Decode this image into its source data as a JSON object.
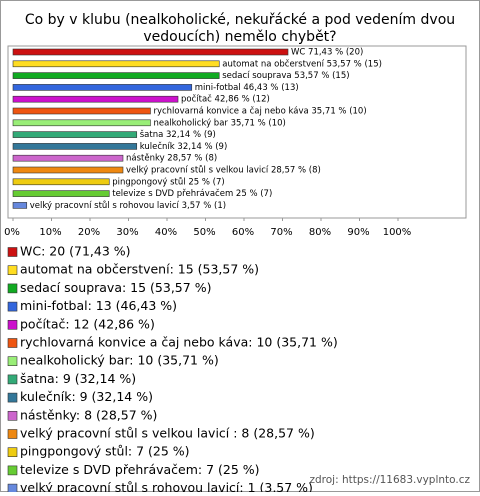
{
  "chart_data": {
    "type": "bar",
    "orientation": "horizontal",
    "title": [
      "Co by v klubu (nealkoholické, nekuřácké a pod vedením dvou",
      "vedoucích) nemělo chybět?"
    ],
    "categories": [
      "WC",
      "automat na občerstvení",
      "sedací souprava",
      "mini-fotbal",
      "počítač",
      "rychlovarná konvice a čaj nebo káva",
      "nealkoholický bar",
      "šatna",
      "kulečník",
      "nástěnky",
      "velký pracovní stůl s velkou lavicí",
      "pingpongový stůl",
      "televize s DVD přehrávačem",
      "velký pracovní stůl s rohovou lavicí"
    ],
    "values": [
      71.43,
      53.57,
      53.57,
      46.43,
      42.86,
      35.71,
      35.71,
      32.14,
      32.14,
      28.57,
      28.57,
      25,
      25,
      3.57
    ],
    "value_labels": [
      "WC 71,43 % (20)",
      "automat na občerstvení 53,57 % (15)",
      "sedací souprava 53,57 % (15)",
      "mini-fotbal 46,43 % (13)",
      "počítač 42,86 % (12)",
      "rychlovarná konvice a čaj nebo káva 35,71 % (10)",
      "nealkoholický bar 35,71 % (10)",
      "šatna 32,14 % (9)",
      "kulečník 32,14 % (9)",
      "nástěnky 28,57 % (8)",
      "velký pracovní stůl s velkou lavicí  28,57 % (8)",
      "pingpongový stůl 25 % (7)",
      "televize s DVD přehrávačem 25 % (7)",
      "velký pracovní stůl s rohovou lavicí 3,57 % (1)"
    ],
    "legend_labels": [
      "WC: 20 (71,43 %)",
      "automat na občerstvení: 15 (53,57 %)",
      "sedací souprava: 15 (53,57 %)",
      "mini-fotbal: 13 (46,43 %)",
      "počítač: 12 (42,86 %)",
      "rychlovarná konvice a čaj nebo káva: 10 (35,71 %)",
      "nealkoholický bar: 10 (35,71 %)",
      "šatna: 9 (32,14 %)",
      "kulečník: 9 (32,14 %)",
      "nástěnky: 8 (28,57 %)",
      "velký pracovní stůl s velkou lavicí : 8 (28,57 %)",
      "pingpongový stůl: 7 (25 %)",
      "televize s DVD přehrávačem: 7 (25 %)",
      "velký pracovní stůl s rohovou lavicí: 1 (3,57 %)"
    ],
    "colors": [
      "#cc1111",
      "#ffdd22",
      "#11aa22",
      "#3366dd",
      "#cc11cc",
      "#ee5511",
      "#99ee77",
      "#33aa77",
      "#337799",
      "#cc66cc",
      "#ee8811",
      "#eecc11",
      "#66cc33",
      "#6688dd"
    ],
    "xlim": [
      0,
      100
    ],
    "xticks": [
      {
        "value": 0,
        "label": "0%"
      },
      {
        "value": 10,
        "label": "10%"
      },
      {
        "value": 20,
        "label": "20%"
      },
      {
        "value": 30,
        "label": "30%"
      },
      {
        "value": 40,
        "label": "40%"
      },
      {
        "value": 50,
        "label": "50%"
      },
      {
        "value": 60,
        "label": "60%"
      },
      {
        "value": 70,
        "label": "70%"
      },
      {
        "value": 80,
        "label": "80%"
      },
      {
        "value": 90,
        "label": "90%"
      },
      {
        "value": 100,
        "label": "100%"
      }
    ],
    "source": "zdroj: https://11683.vyplnto.cz"
  }
}
